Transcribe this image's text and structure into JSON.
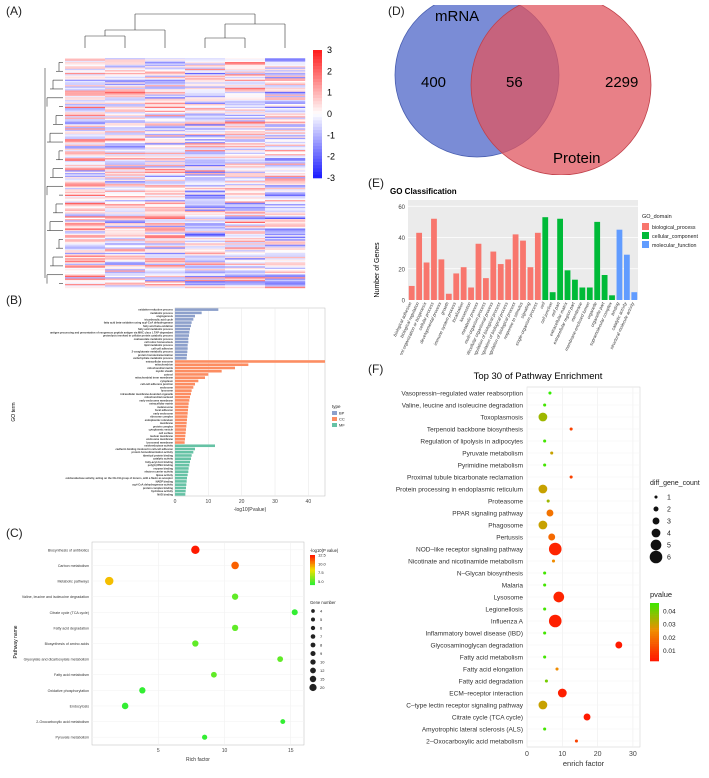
{
  "panel_labels": {
    "a": "(A)",
    "b": "(B)",
    "c": "(C)",
    "d": "(D)",
    "e": "(E)",
    "f": "(F)"
  },
  "colors": {
    "heat_high": "#ff2020",
    "heat_mid": "#ffffff",
    "heat_low": "#2020ff",
    "bp": "#f8766d",
    "cc": "#00ba38",
    "mf": "#619cff",
    "venn_mrna": "#6b7fd1",
    "venn_protein": "#e0555f",
    "bar_b_bp": "#8da0cb",
    "bar_b_cc": "#fc8d62",
    "bar_b_mf": "#66c2a5"
  },
  "chart_data": [
    {
      "id": "A",
      "type": "heatmap",
      "legend_ticks": [
        3,
        2,
        1,
        0,
        -1,
        -2,
        -3
      ],
      "columns": 6,
      "rows": 170,
      "value_range": [
        -3,
        3
      ]
    },
    {
      "id": "D",
      "type": "venn",
      "sets": [
        {
          "name": "mRNA",
          "only": 400
        },
        {
          "name": "Protein",
          "only": 2299
        }
      ],
      "intersection": 56
    },
    {
      "id": "E",
      "type": "bar",
      "title": "GO Classification",
      "ylabel": "Number of Genes",
      "ylim": [
        0,
        60
      ],
      "yticks": [
        0,
        20,
        40,
        60
      ],
      "legend_title": "GO_domain",
      "legend": [
        {
          "key": "bp",
          "label": "biological_process"
        },
        {
          "key": "cc",
          "label": "cellular_component"
        },
        {
          "key": "mf",
          "label": "molecular_function"
        }
      ],
      "bars": [
        {
          "label": "biological adhesion",
          "value": 9,
          "domain": "bp"
        },
        {
          "label": "biological regulation",
          "value": 43,
          "domain": "bp"
        },
        {
          "label": "cellular component organization or biogenesis",
          "value": 24,
          "domain": "bp"
        },
        {
          "label": "cellular process",
          "value": 52,
          "domain": "bp"
        },
        {
          "label": "developmental process",
          "value": 26,
          "domain": "bp"
        },
        {
          "label": "growth",
          "value": 4,
          "domain": "bp"
        },
        {
          "label": "immune system process",
          "value": 17,
          "domain": "bp"
        },
        {
          "label": "localization",
          "value": 21,
          "domain": "bp"
        },
        {
          "label": "locomotion",
          "value": 8,
          "domain": "bp"
        },
        {
          "label": "metabolic process",
          "value": 36,
          "domain": "bp"
        },
        {
          "label": "multi-organism process",
          "value": 14,
          "domain": "bp"
        },
        {
          "label": "multicellular organismal process",
          "value": 31,
          "domain": "bp"
        },
        {
          "label": "negative regulation of biological process",
          "value": 23,
          "domain": "bp"
        },
        {
          "label": "positive regulation of biological process",
          "value": 26,
          "domain": "bp"
        },
        {
          "label": "regulation of biological process",
          "value": 42,
          "domain": "bp"
        },
        {
          "label": "response to stimulus",
          "value": 38,
          "domain": "bp"
        },
        {
          "label": "signaling",
          "value": 21,
          "domain": "bp"
        },
        {
          "label": "single-organism process",
          "value": 43,
          "domain": "bp"
        },
        {
          "label": "cell",
          "value": 53,
          "domain": "cc"
        },
        {
          "label": "cell junction",
          "value": 5,
          "domain": "cc"
        },
        {
          "label": "cell part",
          "value": 52,
          "domain": "cc"
        },
        {
          "label": "extracellular matrix",
          "value": 19,
          "domain": "cc"
        },
        {
          "label": "extracellular region part",
          "value": 13,
          "domain": "cc"
        },
        {
          "label": "membrane",
          "value": 8,
          "domain": "cc"
        },
        {
          "label": "membrane-enclosed lumen",
          "value": 8,
          "domain": "cc"
        },
        {
          "label": "organelle",
          "value": 50,
          "domain": "cc"
        },
        {
          "label": "organelle part",
          "value": 16,
          "domain": "cc"
        },
        {
          "label": "supramolecular complex",
          "value": 3,
          "domain": "cc"
        },
        {
          "label": "binding",
          "value": 45,
          "domain": "mf"
        },
        {
          "label": "catalytic activity",
          "value": 29,
          "domain": "mf"
        },
        {
          "label": "structural molecule activity",
          "value": 5,
          "domain": "mf"
        }
      ]
    },
    {
      "id": "B",
      "type": "bar",
      "orientation": "horizontal",
      "xlabel": "-log10(Pvalue)",
      "ylabel": "GO term",
      "xlim": [
        0,
        45
      ],
      "xticks": [
        0,
        10,
        20,
        30,
        40
      ],
      "legend_title": "type",
      "legend": [
        {
          "key": "bp",
          "label": "BP"
        },
        {
          "key": "cc",
          "label": "CC"
        },
        {
          "key": "mf",
          "label": "MF"
        }
      ],
      "terms": [
        {
          "label": "oxidation-reduction process",
          "value": 13,
          "type": "bp"
        },
        {
          "label": "metabolic process",
          "value": 8,
          "type": "bp"
        },
        {
          "label": "angiogenesis",
          "value": 6,
          "type": "bp"
        },
        {
          "label": "tricarboxylic acid cycle",
          "value": 5.5,
          "type": "bp"
        },
        {
          "label": "fatty acid beta-oxidation using acyl-CoA dehydrogenase",
          "value": 5,
          "type": "bp"
        },
        {
          "label": "fatty acid beta-oxidation",
          "value": 4.8,
          "type": "bp"
        },
        {
          "label": "fatty acid metabolic process",
          "value": 4.5,
          "type": "bp"
        },
        {
          "label": "antigen processing and presentation of exogenous peptide antigen via MHC class I, TAP-dependent",
          "value": 4.3,
          "type": "bp"
        },
        {
          "label": "proteolysis involved in cellular protein catabolic process",
          "value": 4.2,
          "type": "bp"
        },
        {
          "label": "oxaloacetate metabolic process",
          "value": 4,
          "type": "bp"
        },
        {
          "label": "cell redox homeostasis",
          "value": 4,
          "type": "bp"
        },
        {
          "label": "lipid metabolic process",
          "value": 3.8,
          "type": "bp"
        },
        {
          "label": "cell-cell adhesion",
          "value": 3.8,
          "type": "bp"
        },
        {
          "label": "2-oxoglutarate metabolic process",
          "value": 3.7,
          "type": "bp"
        },
        {
          "label": "protein homotetramerization",
          "value": 3.6,
          "type": "bp"
        },
        {
          "label": "carbohydrate metabolic process",
          "value": 3.5,
          "type": "bp"
        },
        {
          "label": "extracellular exosome",
          "value": 45,
          "type": "cc"
        },
        {
          "label": "mitochondrion",
          "value": 22,
          "type": "cc"
        },
        {
          "label": "mitochondrial matrix",
          "value": 18,
          "type": "cc"
        },
        {
          "label": "myelin sheath",
          "value": 14,
          "type": "cc"
        },
        {
          "label": "cytosol",
          "value": 10,
          "type": "cc"
        },
        {
          "label": "mitochondrial inner membrane",
          "value": 9,
          "type": "cc"
        },
        {
          "label": "cytoplasm",
          "value": 7,
          "type": "cc"
        },
        {
          "label": "cell-cell adherens junction",
          "value": 6,
          "type": "cc"
        },
        {
          "label": "endosome",
          "value": 5.5,
          "type": "cc"
        },
        {
          "label": "lysosome",
          "value": 5,
          "type": "cc"
        },
        {
          "label": "intracellular membrane-bounded organelle",
          "value": 4.8,
          "type": "cc"
        },
        {
          "label": "mitochondrial nucleoid",
          "value": 4.5,
          "type": "cc"
        },
        {
          "label": "early endosome membrane",
          "value": 4.3,
          "type": "cc"
        },
        {
          "label": "extracellular matrix",
          "value": 4.1,
          "type": "cc"
        },
        {
          "label": "melanosome",
          "value": 4,
          "type": "cc"
        },
        {
          "label": "focal adhesion",
          "value": 3.9,
          "type": "cc"
        },
        {
          "label": "early endosome",
          "value": 3.8,
          "type": "cc"
        },
        {
          "label": "ribosome complex",
          "value": 3.7,
          "type": "cc"
        },
        {
          "label": "endoplasmic reticulum",
          "value": 3.6,
          "type": "cc"
        },
        {
          "label": "membrane",
          "value": 3.5,
          "type": "cc"
        },
        {
          "label": "protein complex",
          "value": 3.4,
          "type": "cc"
        },
        {
          "label": "cytoplasmic vesicle",
          "value": 3.3,
          "type": "cc"
        },
        {
          "label": "cell surface",
          "value": 3.2,
          "type": "cc"
        },
        {
          "label": "nuclear membrane",
          "value": 3.1,
          "type": "cc"
        },
        {
          "label": "endosome membrane",
          "value": 3,
          "type": "cc"
        },
        {
          "label": "lysosomal membrane",
          "value": 2.9,
          "type": "cc"
        },
        {
          "label": "oxidoreductase activity",
          "value": 12,
          "type": "mf"
        },
        {
          "label": "cadherin binding involved in cell-cell adhesion",
          "value": 6,
          "type": "mf"
        },
        {
          "label": "protein homodimerization activity",
          "value": 5.5,
          "type": "mf"
        },
        {
          "label": "identical protein binding",
          "value": 5,
          "type": "mf"
        },
        {
          "label": "catalytic activity",
          "value": 4.8,
          "type": "mf"
        },
        {
          "label": "fatty-acyl-CoA binding",
          "value": 4.5,
          "type": "mf"
        },
        {
          "label": "poly(A) RNA binding",
          "value": 4.3,
          "type": "mf"
        },
        {
          "label": "enzyme binding",
          "value": 4.1,
          "type": "mf"
        },
        {
          "label": "electron carrier activity",
          "value": 4,
          "type": "mf"
        },
        {
          "label": "lipase activity",
          "value": 3.8,
          "type": "mf"
        },
        {
          "label": "oxidoreductase activity, acting on the CH-CH group of donors, with a flavin as acceptor",
          "value": 3.6,
          "type": "mf"
        },
        {
          "label": "NADP binding",
          "value": 3.5,
          "type": "mf"
        },
        {
          "label": "acyl-CoA dehydrogenase activity",
          "value": 3.4,
          "type": "mf"
        },
        {
          "label": "protein complex binding",
          "value": 3.3,
          "type": "mf"
        },
        {
          "label": "hydrolase activity",
          "value": 3.2,
          "type": "mf"
        },
        {
          "label": "NAD binding",
          "value": 3.1,
          "type": "mf"
        }
      ]
    },
    {
      "id": "C",
      "type": "scatter",
      "xlabel": "Rich factor",
      "ylabel": "Pathway name",
      "xlim": [
        0,
        16
      ],
      "xticks": [
        5,
        10,
        15
      ],
      "color_title": "-log10(P value)",
      "color_ticks": [
        12.5,
        10.0,
        7.5,
        5.0
      ],
      "size_title": "Gene number",
      "size_ticks": [
        4,
        5,
        6,
        7,
        8,
        9,
        10,
        12,
        15,
        20
      ],
      "points": [
        {
          "label": "Biosynthesis of antibiotics",
          "x": 7.8,
          "size": 20,
          "p": 12.5
        },
        {
          "label": "Carbon metabolism",
          "x": 10.8,
          "size": 15,
          "p": 11
        },
        {
          "label": "Metabolic pathways",
          "x": 1.3,
          "size": 20,
          "p": 9
        },
        {
          "label": "Valine, leucine and isoleucine degradation",
          "x": 10.8,
          "size": 9,
          "p": 5
        },
        {
          "label": "Citrate cycle (TCA cycle)",
          "x": 15.3,
          "size": 8,
          "p": 4
        },
        {
          "label": "Fatty acid degradation",
          "x": 10.8,
          "size": 9,
          "p": 5
        },
        {
          "label": "Biosynthesis of amino acids",
          "x": 7.8,
          "size": 9,
          "p": 5
        },
        {
          "label": "Glyoxylate and dicarboxylate metabolism",
          "x": 14.2,
          "size": 7,
          "p": 5
        },
        {
          "label": "Fatty acid metabolism",
          "x": 9.2,
          "size": 7,
          "p": 5
        },
        {
          "label": "Oxidative phosphorylation",
          "x": 3.8,
          "size": 9,
          "p": 4
        },
        {
          "label": "Endocytosis",
          "x": 2.5,
          "size": 10,
          "p": 4
        },
        {
          "label": "2-Oxocarboxylic acid metabolism",
          "x": 14.4,
          "size": 4,
          "p": 4
        },
        {
          "label": "Pyruvate metabolism",
          "x": 8.5,
          "size": 5,
          "p": 4
        }
      ]
    },
    {
      "id": "F",
      "type": "scatter",
      "title": "Top 30 of Pathway Enrichment",
      "xlabel": "enrich factor",
      "xlim": [
        0,
        32
      ],
      "xticks": [
        0,
        10,
        20,
        30
      ],
      "size_title": "diff_gene_count",
      "size_ticks": [
        1,
        2,
        3,
        4,
        5,
        6
      ],
      "color_title": "pvalue",
      "color_ticks": [
        0.04,
        0.03,
        0.02,
        0.01
      ],
      "points": [
        {
          "label": "Vasopressin–regulated water reabsorption",
          "x": 6.5,
          "count": 1,
          "p": 0.048
        },
        {
          "label": "Valine, leucine and isoleucine degradation",
          "x": 5,
          "count": 1,
          "p": 0.046
        },
        {
          "label": "Toxoplasmosis",
          "x": 4.5,
          "count": 4,
          "p": 0.035
        },
        {
          "label": "Terpenoid backbone biosynthesis",
          "x": 12.5,
          "count": 1,
          "p": 0.01
        },
        {
          "label": "Regulation of lipolysis in adipocytes",
          "x": 5,
          "count": 1,
          "p": 0.046
        },
        {
          "label": "Pyruvate metabolism",
          "x": 7,
          "count": 1,
          "p": 0.03
        },
        {
          "label": "Pyrimidine metabolism",
          "x": 5,
          "count": 1,
          "p": 0.046
        },
        {
          "label": "Proximal tubule bicarbonate reclamation",
          "x": 12.5,
          "count": 1,
          "p": 0.01
        },
        {
          "label": "Protein processing in endoplasmic reticulum",
          "x": 4.5,
          "count": 4,
          "p": 0.03
        },
        {
          "label": "Proteasome",
          "x": 6,
          "count": 1,
          "p": 0.035
        },
        {
          "label": "PPAR signaling pathway",
          "x": 6.5,
          "count": 3,
          "p": 0.02
        },
        {
          "label": "Phagosome",
          "x": 4.5,
          "count": 4,
          "p": 0.03
        },
        {
          "label": "Pertussis",
          "x": 7,
          "count": 3,
          "p": 0.018
        },
        {
          "label": "NOD–like receptor signaling pathway",
          "x": 8,
          "count": 6,
          "p": 0.004
        },
        {
          "label": "Nicotinate and nicotinamide metabolism",
          "x": 7.5,
          "count": 1,
          "p": 0.025
        },
        {
          "label": "N–Glycan biosynthesis",
          "x": 5,
          "count": 1,
          "p": 0.046
        },
        {
          "label": "Malaria",
          "x": 5,
          "count": 1,
          "p": 0.046
        },
        {
          "label": "Lysosome",
          "x": 9,
          "count": 5,
          "p": 0.004
        },
        {
          "label": "Legionellosis",
          "x": 5,
          "count": 1,
          "p": 0.046
        },
        {
          "label": "Influenza A",
          "x": 8,
          "count": 6,
          "p": 0.003
        },
        {
          "label": "Inflammatory bowel disease (IBD)",
          "x": 5,
          "count": 1,
          "p": 0.046
        },
        {
          "label": "Glycosaminoglycan degradation",
          "x": 26,
          "count": 3,
          "p": 0.002
        },
        {
          "label": "Fatty acid metabolism",
          "x": 5,
          "count": 1,
          "p": 0.046
        },
        {
          "label": "Fatty acid elongation",
          "x": 8.5,
          "count": 1,
          "p": 0.025
        },
        {
          "label": "Fatty acid degradation",
          "x": 5.5,
          "count": 1,
          "p": 0.04
        },
        {
          "label": "ECM–receptor interaction",
          "x": 10,
          "count": 4,
          "p": 0.003
        },
        {
          "label": "C–type lectin receptor signaling pathway",
          "x": 4.5,
          "count": 4,
          "p": 0.03
        },
        {
          "label": "Citrate cycle (TCA cycle)",
          "x": 17,
          "count": 3,
          "p": 0.002
        },
        {
          "label": "Amyotrophic lateral sclerosis (ALS)",
          "x": 5,
          "count": 1,
          "p": 0.046
        },
        {
          "label": "2–Oxocarboxylic acid metabolism",
          "x": 14,
          "count": 1,
          "p": 0.01
        }
      ]
    }
  ]
}
